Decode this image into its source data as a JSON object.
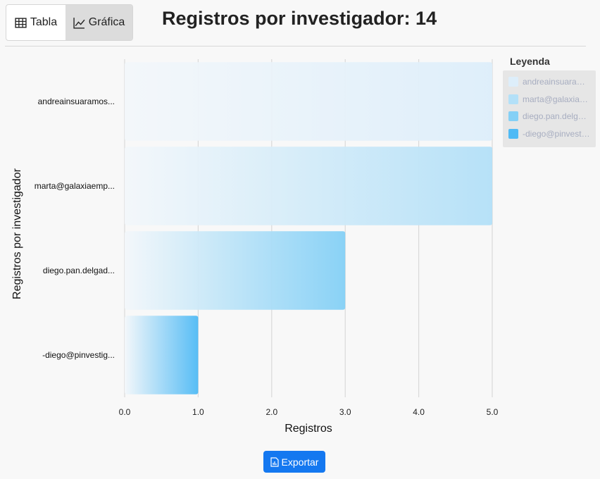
{
  "toolbar": {
    "table_label": "Tabla",
    "chart_label": "Gráfica"
  },
  "title": "Registros por investigador: 14",
  "legend": {
    "title": "Leyenda",
    "items": [
      {
        "label": "andreainsuaramos...",
        "color": "#ddeefa"
      },
      {
        "label": "marta@galaxiaemp...",
        "color": "#b3e0f8"
      },
      {
        "label": "diego.pan.delgad...",
        "color": "#84d0f6"
      },
      {
        "label": "-diego@pinvestig...",
        "color": "#4fbaf5"
      }
    ]
  },
  "export_label": "Exportar",
  "chart_data": {
    "type": "bar",
    "orientation": "horizontal",
    "categories": [
      "andreainsuaramos...",
      "marta@galaxiaemp...",
      "diego.pan.delgad...",
      "-diego@pinvestig..."
    ],
    "values": [
      5,
      5,
      3,
      1
    ],
    "colors": [
      "#ddeefa",
      "#b3e0f8",
      "#84d0f6",
      "#4fbaf5"
    ],
    "xlabel": "Registros",
    "ylabel": "Registros por investigador",
    "xlim": [
      0,
      5
    ],
    "xticks": [
      "0.0",
      "1.0",
      "2.0",
      "3.0",
      "4.0",
      "5.0"
    ],
    "grid": true,
    "legend_position": "right"
  }
}
